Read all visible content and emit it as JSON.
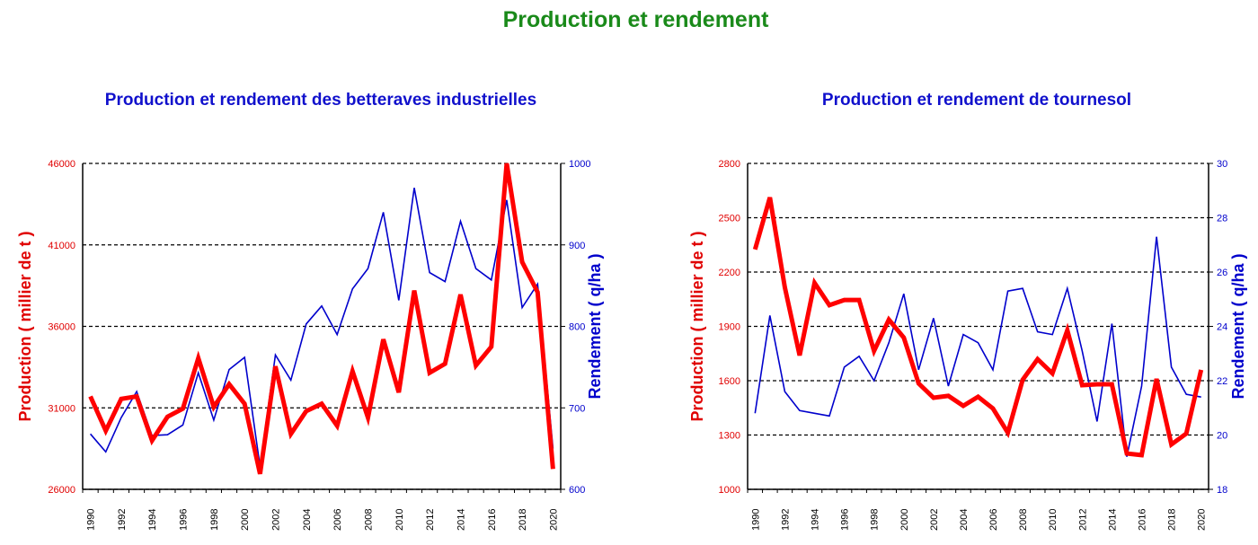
{
  "page": {
    "title": "Production et rendement"
  },
  "colors": {
    "production": "#ff0000",
    "rendement": "#0000cc",
    "title": "#1a8a1a",
    "subtitle": "#1010cc"
  },
  "chart_data": [
    {
      "type": "line",
      "title": "Production et rendement des betteraves industrielles",
      "xlabel": "",
      "ylabel": "Production ( millier de t )",
      "y2label": "Rendement ( q/ha )",
      "ylim": [
        26000,
        46000
      ],
      "y2lim": [
        600,
        1000
      ],
      "yticks": [
        26000,
        31000,
        36000,
        41000,
        46000
      ],
      "y2ticks": [
        600,
        700,
        800,
        900,
        1000
      ],
      "grid": true,
      "x": [
        1990,
        1991,
        1992,
        1993,
        1994,
        1995,
        1996,
        1997,
        1998,
        1999,
        2000,
        2001,
        2002,
        2003,
        2004,
        2005,
        2006,
        2007,
        2008,
        2009,
        2010,
        2011,
        2012,
        2013,
        2014,
        2015,
        2016,
        2017,
        2018,
        2019,
        2020
      ],
      "xticks": [
        "1990",
        "1992",
        "1994",
        "1996",
        "1998",
        "2000",
        "2002",
        "2004",
        "2006",
        "2008",
        "2010",
        "2012",
        "2014",
        "2016",
        "2018",
        "2020"
      ],
      "series": [
        {
          "axis": "left",
          "color": "#ff0000",
          "values": [
            31700,
            29600,
            31550,
            31700,
            29000,
            30450,
            30950,
            34050,
            31050,
            32450,
            31250,
            26950,
            33550,
            29400,
            30800,
            31250,
            29900,
            33250,
            30400,
            35200,
            31950,
            38200,
            33150,
            33700,
            37950,
            33600,
            34750,
            46000,
            39950,
            38100,
            27250
          ]
        },
        {
          "axis": "right",
          "color": "#0000cc",
          "values": [
            668,
            646,
            688,
            720,
            666,
            667,
            679,
            743,
            685,
            747,
            762,
            628,
            765,
            734,
            803,
            825,
            790,
            846,
            871,
            940,
            832,
            970,
            866,
            855,
            929,
            871,
            857,
            955,
            823,
            852,
            650
          ]
        }
      ]
    },
    {
      "type": "line",
      "title": "Production et rendement de tournesol",
      "xlabel": "",
      "ylabel": "Production ( millier de t )",
      "y2label": "Rendement ( q/ha )",
      "ylim": [
        1000,
        2800
      ],
      "y2lim": [
        18,
        30
      ],
      "yticks": [
        1000,
        1300,
        1600,
        1900,
        2200,
        2500,
        2800
      ],
      "y2ticks": [
        18,
        20,
        22,
        24,
        26,
        28,
        30
      ],
      "grid": true,
      "x": [
        1990,
        1991,
        1992,
        1993,
        1994,
        1995,
        1996,
        1997,
        1998,
        1999,
        2000,
        2001,
        2002,
        2003,
        2004,
        2005,
        2006,
        2007,
        2008,
        2009,
        2010,
        2011,
        2012,
        2013,
        2014,
        2015,
        2016,
        2017,
        2018,
        2019,
        2020
      ],
      "xticks": [
        "1990",
        "1992",
        "1994",
        "1996",
        "1998",
        "2000",
        "2002",
        "2004",
        "2006",
        "2008",
        "2010",
        "2012",
        "2014",
        "2016",
        "2018",
        "2020"
      ],
      "series": [
        {
          "axis": "left",
          "color": "#ff0000",
          "values": [
            2325,
            2612,
            2116,
            1740,
            2140,
            2017,
            2046,
            2046,
            1764,
            1937,
            1838,
            1585,
            1506,
            1516,
            1461,
            1511,
            1447,
            1313,
            1605,
            1719,
            1640,
            1878,
            1575,
            1580,
            1580,
            1198,
            1189,
            1610,
            1248,
            1308,
            1660
          ]
        },
        {
          "axis": "right",
          "color": "#0000cc",
          "values": [
            20.8,
            24.4,
            21.6,
            20.9,
            20.8,
            20.7,
            22.5,
            22.9,
            22.0,
            23.4,
            25.2,
            22.4,
            24.3,
            21.8,
            23.7,
            23.4,
            22.4,
            25.3,
            25.4,
            23.8,
            23.7,
            25.4,
            23.1,
            20.5,
            24.1,
            19.2,
            21.8,
            27.3,
            22.5,
            21.5,
            21.4
          ]
        }
      ]
    }
  ]
}
